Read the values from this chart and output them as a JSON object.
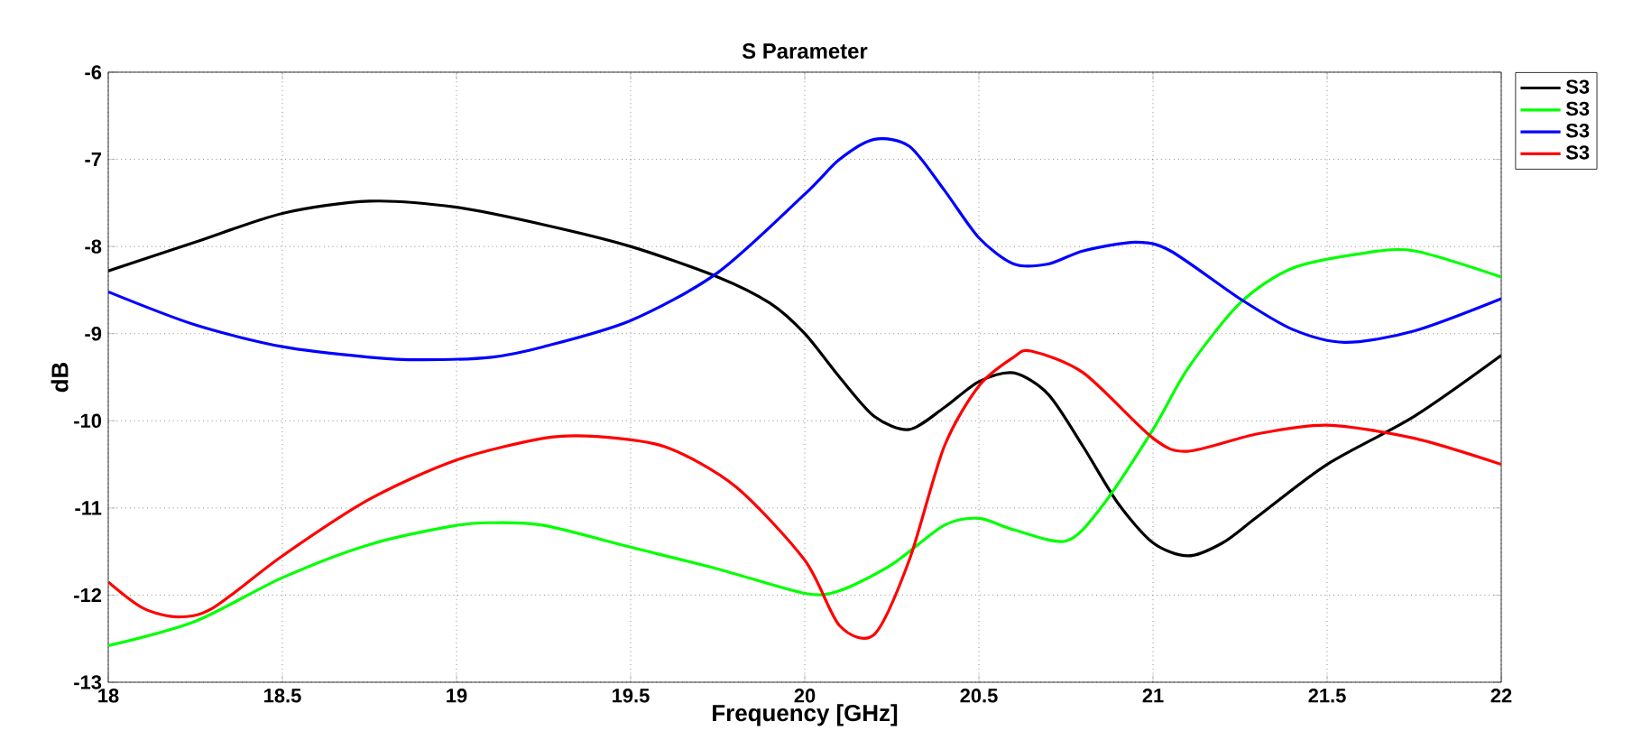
{
  "chart_data": {
    "type": "line",
    "title": "S Parameter",
    "xlabel": "Frequency [GHz]",
    "ylabel": "dB",
    "xlim": [
      18,
      22
    ],
    "ylim": [
      -13,
      -6
    ],
    "xticks": [
      18,
      18.5,
      19,
      19.5,
      20,
      20.5,
      21,
      21.5,
      22
    ],
    "yticks": [
      -13,
      -12,
      -11,
      -10,
      -9,
      -8,
      -7,
      -6
    ],
    "grid": true,
    "legend": "top right",
    "marker": "none",
    "line_style": "solid",
    "series": [
      {
        "name": "S3",
        "color": "#000000",
        "x": [
          18,
          18.25,
          18.5,
          18.75,
          19,
          19.25,
          19.5,
          19.75,
          19.9,
          20,
          20.1,
          20.2,
          20.3,
          20.4,
          20.5,
          20.6,
          20.7,
          20.8,
          20.9,
          21,
          21.1,
          21.2,
          21.3,
          21.5,
          21.75,
          22
        ],
        "values": [
          -8.28,
          -7.95,
          -7.62,
          -7.48,
          -7.55,
          -7.75,
          -8.0,
          -8.35,
          -8.65,
          -9.0,
          -9.5,
          -9.95,
          -10.1,
          -9.85,
          -9.55,
          -9.45,
          -9.7,
          -10.3,
          -10.95,
          -11.4,
          -11.55,
          -11.4,
          -11.1,
          -10.5,
          -9.95,
          -9.25
        ]
      },
      {
        "name": "S3",
        "color": "#00ff00",
        "x": [
          18,
          18.25,
          18.5,
          18.75,
          19,
          19.1,
          19.25,
          19.5,
          19.75,
          20,
          20.1,
          20.25,
          20.4,
          20.5,
          20.6,
          20.75,
          20.85,
          21,
          21.1,
          21.25,
          21.4,
          21.6,
          21.75,
          22
        ],
        "values": [
          -12.58,
          -12.3,
          -11.8,
          -11.42,
          -11.2,
          -11.17,
          -11.2,
          -11.45,
          -11.7,
          -11.98,
          -11.95,
          -11.65,
          -11.2,
          -11.12,
          -11.25,
          -11.38,
          -11.0,
          -10.1,
          -9.4,
          -8.65,
          -8.25,
          -8.08,
          -8.05,
          -8.35
        ]
      },
      {
        "name": "S3",
        "color": "#0000ff",
        "x": [
          18,
          18.25,
          18.5,
          18.75,
          18.9,
          19.1,
          19.25,
          19.5,
          19.75,
          20,
          20.1,
          20.2,
          20.3,
          20.4,
          20.5,
          20.6,
          20.7,
          20.8,
          20.95,
          21.05,
          21.25,
          21.4,
          21.55,
          21.75,
          22
        ],
        "values": [
          -8.52,
          -8.9,
          -9.15,
          -9.27,
          -9.3,
          -9.27,
          -9.15,
          -8.85,
          -8.3,
          -7.4,
          -7.0,
          -6.77,
          -6.85,
          -7.35,
          -7.9,
          -8.2,
          -8.2,
          -8.05,
          -7.95,
          -8.05,
          -8.6,
          -8.95,
          -9.1,
          -8.97,
          -8.6
        ]
      },
      {
        "name": "S3",
        "color": "#ff0000",
        "x": [
          18,
          18.1,
          18.2,
          18.3,
          18.5,
          18.75,
          19,
          19.25,
          19.4,
          19.6,
          19.8,
          20,
          20.1,
          20.2,
          20.3,
          20.4,
          20.5,
          20.6,
          20.65,
          20.8,
          21,
          21.1,
          21.3,
          21.5,
          21.75,
          22
        ],
        "values": [
          -11.85,
          -12.15,
          -12.25,
          -12.15,
          -11.55,
          -10.9,
          -10.45,
          -10.2,
          -10.18,
          -10.3,
          -10.75,
          -11.6,
          -12.35,
          -12.45,
          -11.6,
          -10.3,
          -9.6,
          -9.27,
          -9.2,
          -9.45,
          -10.2,
          -10.35,
          -10.15,
          -10.05,
          -10.2,
          -10.5
        ]
      }
    ]
  }
}
